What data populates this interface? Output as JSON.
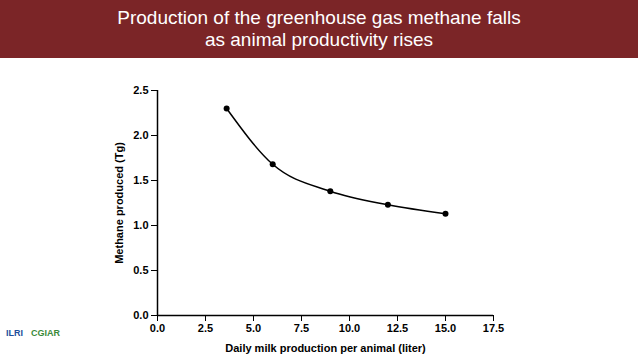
{
  "chart_data": {
    "type": "line",
    "title": "Production of the greenhouse gas methane falls as animal productivity rises",
    "x_label": "Daily milk production per animal (liter)",
    "y_label": "Methane produced (Tg)",
    "x": [
      3.6,
      6,
      9,
      12,
      15
    ],
    "series": [
      {
        "name": "Methane produced",
        "color": "#000000",
        "marker": "circle",
        "line_style": "solid",
        "values": [
          2.3,
          1.68,
          1.38,
          1.23,
          1.13
        ]
      }
    ],
    "xlim": [
      0,
      17.5
    ],
    "xticks": [
      {
        "value": 0,
        "label": "0.0"
      },
      2.5,
      {
        "value": 5,
        "label": "5.0"
      },
      7.5,
      {
        "value": 10,
        "label": "10.0"
      },
      12.5,
      {
        "value": 15,
        "label": "15.0"
      },
      17.5
    ],
    "ylim": [
      0,
      2.5
    ],
    "yticks": [
      {
        "value": 0,
        "label": "0.0"
      },
      0.5,
      {
        "value": 1,
        "label": "1.0"
      },
      1.5,
      {
        "value": 2,
        "label": "2.0"
      },
      2.5
    ],
    "grid": false
  },
  "footer": [
    "ILRI",
    "CGIAR"
  ]
}
